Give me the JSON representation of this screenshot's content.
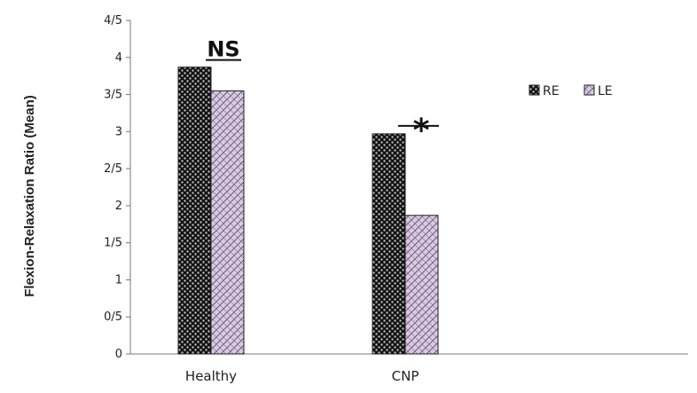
{
  "chart_data": {
    "type": "bar",
    "title": "",
    "xlabel": "",
    "ylabel": "Flexion-Relaxation Ratio (Mean)",
    "categories": [
      "Healthy",
      "CNP"
    ],
    "series": [
      {
        "name": "RE",
        "values": [
          3.87,
          2.97
        ],
        "color": "#1a1a1a",
        "pattern": "dots"
      },
      {
        "name": "LE",
        "values": [
          3.55,
          1.87
        ],
        "color": "#d6c6e0",
        "pattern": "crosshatch"
      }
    ],
    "ylim": [
      0,
      4.5
    ],
    "yticks": [
      {
        "value": 0,
        "label": "0"
      },
      {
        "value": 0.5,
        "label": "0/5"
      },
      {
        "value": 1,
        "label": "1"
      },
      {
        "value": 1.5,
        "label": "1/5"
      },
      {
        "value": 2,
        "label": "2"
      },
      {
        "value": 2.5,
        "label": "2/5"
      },
      {
        "value": 3,
        "label": "3"
      },
      {
        "value": 3.5,
        "label": "3/5"
      },
      {
        "value": 4,
        "label": "4"
      },
      {
        "value": 4.5,
        "label": "4/5"
      }
    ],
    "annotations": [
      {
        "category": "Healthy",
        "text": "NS"
      },
      {
        "category": "CNP",
        "text": "*"
      }
    ],
    "legend_position": "top-right",
    "grid": false
  }
}
